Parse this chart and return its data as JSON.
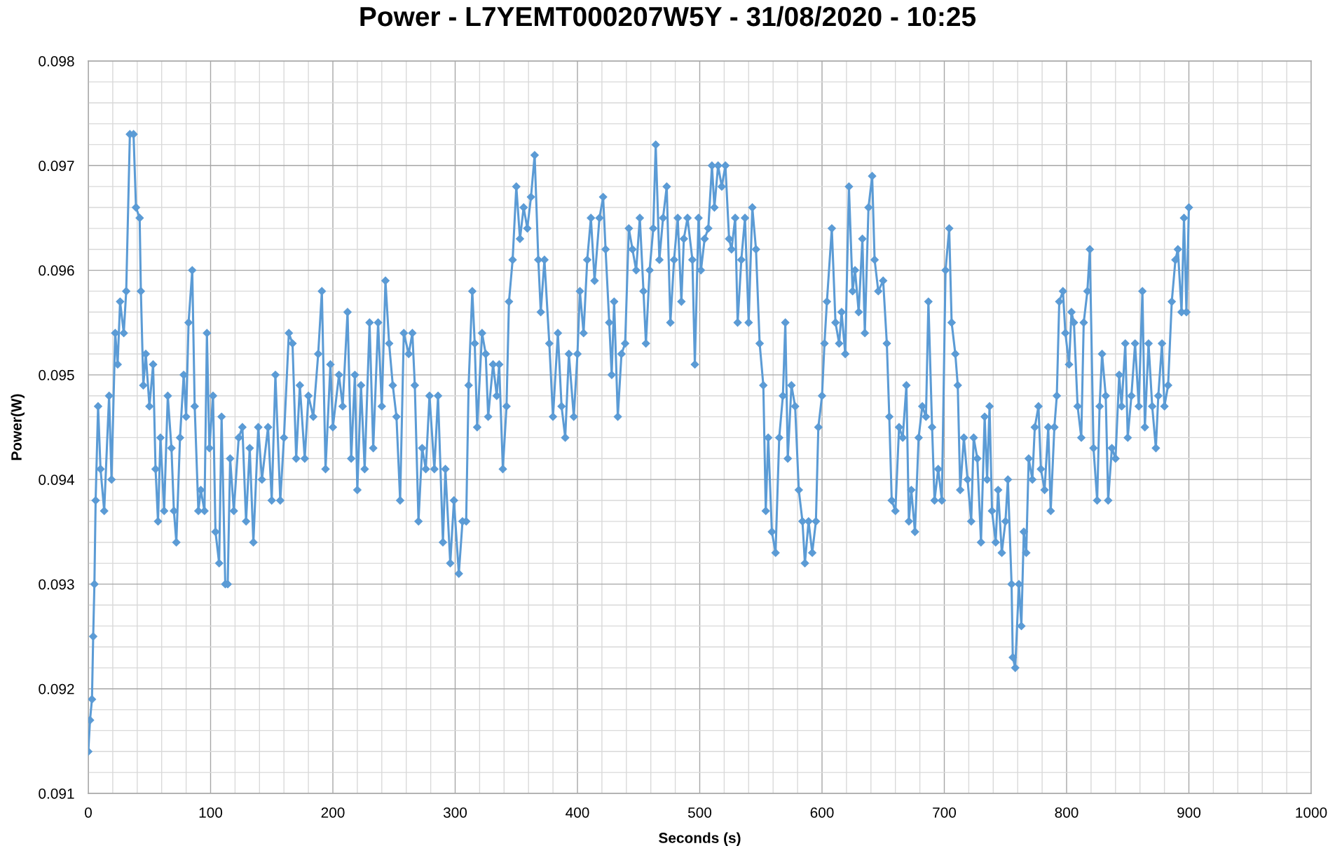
{
  "chart_data": {
    "type": "line",
    "title": "Power - L7YEMT000207W5Y - 31/08/2020 - 10:25",
    "xlabel": "Seconds (s)",
    "ylabel": "Power(W)",
    "xlim": [
      0,
      1000
    ],
    "ylim": [
      0.091,
      0.098
    ],
    "xticks": [
      0,
      {
        "value": 20,
        "label": null
      },
      {
        "value": 40,
        "label": null
      },
      {
        "value": 60,
        "label": null
      },
      {
        "value": 80,
        "label": null
      },
      100,
      {
        "value": 120,
        "label": null
      },
      {
        "value": 140,
        "label": null
      },
      {
        "value": 160,
        "label": null
      },
      {
        "value": 180,
        "label": null
      },
      200,
      {
        "value": 220,
        "label": null
      },
      {
        "value": 240,
        "label": null
      },
      {
        "value": 260,
        "label": null
      },
      {
        "value": 280,
        "label": null
      },
      300,
      {
        "value": 320,
        "label": null
      },
      {
        "value": 340,
        "label": null
      },
      {
        "value": 360,
        "label": null
      },
      {
        "value": 380,
        "label": null
      },
      400,
      {
        "value": 420,
        "label": null
      },
      {
        "value": 440,
        "label": null
      },
      {
        "value": 460,
        "label": null
      },
      {
        "value": 480,
        "label": null
      },
      500,
      {
        "value": 520,
        "label": null
      },
      {
        "value": 540,
        "label": null
      },
      {
        "value": 560,
        "label": null
      },
      {
        "value": 580,
        "label": null
      },
      600,
      {
        "value": 620,
        "label": null
      },
      {
        "value": 640,
        "label": null
      },
      {
        "value": 660,
        "label": null
      },
      {
        "value": 680,
        "label": null
      },
      700,
      {
        "value": 720,
        "label": null
      },
      {
        "value": 740,
        "label": null
      },
      {
        "value": 760,
        "label": null
      },
      {
        "value": 780,
        "label": null
      },
      800,
      {
        "value": 820,
        "label": null
      },
      {
        "value": 840,
        "label": null
      },
      {
        "value": 860,
        "label": null
      },
      {
        "value": 880,
        "label": null
      },
      900,
      {
        "value": 920,
        "label": null
      },
      {
        "value": 940,
        "label": null
      },
      {
        "value": 960,
        "label": null
      },
      {
        "value": 980,
        "label": null
      },
      1000
    ],
    "yticks": [
      0.091,
      {
        "value": 0.0912,
        "label": null
      },
      {
        "value": 0.0914,
        "label": null
      },
      {
        "value": 0.0916,
        "label": null
      },
      {
        "value": 0.0918,
        "label": null
      },
      0.092,
      {
        "value": 0.0922,
        "label": null
      },
      {
        "value": 0.0924,
        "label": null
      },
      {
        "value": 0.0926,
        "label": null
      },
      {
        "value": 0.0928,
        "label": null
      },
      0.093,
      {
        "value": 0.0932,
        "label": null
      },
      {
        "value": 0.0934,
        "label": null
      },
      {
        "value": 0.0936,
        "label": null
      },
      {
        "value": 0.0938,
        "label": null
      },
      0.094,
      {
        "value": 0.0942,
        "label": null
      },
      {
        "value": 0.0944,
        "label": null
      },
      {
        "value": 0.0946,
        "label": null
      },
      {
        "value": 0.0948,
        "label": null
      },
      0.095,
      {
        "value": 0.0952,
        "label": null
      },
      {
        "value": 0.0954,
        "label": null
      },
      {
        "value": 0.0956,
        "label": null
      },
      {
        "value": 0.0958,
        "label": null
      },
      0.096,
      {
        "value": 0.0962,
        "label": null
      },
      {
        "value": 0.0964,
        "label": null
      },
      {
        "value": 0.0966,
        "label": null
      },
      {
        "value": 0.0968,
        "label": null
      },
      0.097,
      {
        "value": 0.0972,
        "label": null
      },
      {
        "value": 0.0974,
        "label": null
      },
      {
        "value": 0.0976,
        "label": null
      },
      {
        "value": 0.0978,
        "label": null
      },
      0.098
    ],
    "grid": true,
    "marker": "diamond",
    "line_style": "solid",
    "x": [
      0,
      1.4,
      3,
      4,
      5,
      6,
      8,
      10,
      13,
      17,
      19,
      22,
      24,
      26,
      29,
      31,
      34,
      37,
      39,
      42,
      43,
      45,
      47,
      50,
      53,
      55,
      57,
      59,
      62,
      65,
      68,
      70,
      72,
      75,
      78,
      80,
      82,
      85,
      87,
      90,
      92,
      95,
      97,
      99,
      102,
      104,
      107,
      109,
      112,
      114,
      116,
      119,
      123,
      126,
      129,
      132,
      135,
      139,
      142,
      147,
      150,
      153,
      157,
      160,
      164,
      167,
      170,
      173,
      177,
      180,
      184,
      188,
      191,
      194,
      198,
      200,
      205,
      208,
      212,
      215,
      218,
      220,
      223,
      226,
      230,
      233,
      237,
      240,
      243,
      246,
      249,
      252,
      255,
      258,
      262,
      265,
      267,
      270,
      273,
      276,
      279,
      283,
      286,
      290,
      292,
      296,
      299,
      303,
      306,
      309,
      311,
      314,
      316,
      318,
      322,
      325,
      327,
      331,
      334,
      336,
      339,
      342,
      344,
      347,
      350,
      353,
      356,
      359,
      362,
      365,
      368,
      370,
      373,
      377,
      380,
      384,
      387,
      390,
      393,
      397,
      400,
      402,
      405,
      408,
      411,
      414,
      418,
      421,
      423,
      426,
      428,
      430,
      433,
      436,
      439,
      442,
      445,
      448,
      451,
      454,
      456,
      459,
      462,
      464,
      467,
      470,
      473,
      476,
      479,
      482,
      485,
      487,
      490,
      494,
      496,
      499,
      501,
      504,
      507,
      510,
      512,
      515,
      518,
      521,
      524,
      526,
      529,
      531,
      534,
      537,
      540,
      543,
      546,
      549,
      552,
      554,
      556,
      559,
      562,
      565,
      568,
      570,
      572,
      575,
      578,
      581,
      584,
      586,
      589,
      592,
      595,
      597,
      600,
      602,
      604,
      608,
      611,
      614,
      616,
      619,
      622,
      625,
      627,
      630,
      633,
      635,
      638,
      641,
      643,
      646,
      650,
      653,
      655,
      657,
      660,
      663,
      666,
      669,
      671,
      673,
      676,
      679,
      682,
      685,
      687,
      690,
      692,
      695,
      698,
      701,
      704,
      706,
      709,
      711,
      713,
      716,
      719,
      722,
      724,
      727,
      730,
      733,
      735,
      737,
      739,
      742,
      744,
      747,
      750,
      752,
      755,
      756,
      758,
      761,
      763,
      765,
      767,
      769,
      772,
      774,
      777,
      779,
      782,
      785,
      787,
      790,
      792,
      794,
      797,
      799,
      802,
      804,
      806,
      809,
      812,
      814,
      817,
      819,
      822,
      825,
      827,
      829,
      832,
      834,
      837,
      840,
      843,
      845,
      848,
      850,
      853,
      856,
      859,
      862,
      864,
      867,
      870,
      873,
      875,
      878,
      880,
      883,
      886,
      889,
      891,
      894,
      896,
      898,
      900
    ],
    "series": [
      {
        "color": "#5b9bd5",
        "values": [
          0.0914,
          0.0917,
          0.0919,
          0.0925,
          0.093,
          0.0938,
          0.0947,
          0.0941,
          0.0937,
          0.0948,
          0.094,
          0.0954,
          0.0951,
          0.0957,
          0.0954,
          0.0958,
          0.0973,
          0.0973,
          0.0966,
          0.0965,
          0.0958,
          0.0949,
          0.0952,
          0.0947,
          0.0951,
          0.0941,
          0.0936,
          0.0944,
          0.0937,
          0.0948,
          0.0943,
          0.0937,
          0.0934,
          0.0944,
          0.095,
          0.0946,
          0.0955,
          0.096,
          0.0947,
          0.0937,
          0.0939,
          0.0937,
          0.0954,
          0.0943,
          0.0948,
          0.0935,
          0.0932,
          0.0946,
          0.093,
          0.093,
          0.0942,
          0.0937,
          0.0944,
          0.0945,
          0.0936,
          0.0943,
          0.0934,
          0.0945,
          0.094,
          0.0945,
          0.0938,
          0.095,
          0.0938,
          0.0944,
          0.0954,
          0.0953,
          0.0942,
          0.0949,
          0.0942,
          0.0948,
          0.0946,
          0.0952,
          0.0958,
          0.0941,
          0.0951,
          0.0945,
          0.095,
          0.0947,
          0.0956,
          0.0942,
          0.095,
          0.0939,
          0.0949,
          0.0941,
          0.0955,
          0.0943,
          0.0955,
          0.0947,
          0.0959,
          0.0953,
          0.0949,
          0.0946,
          0.0938,
          0.0954,
          0.0952,
          0.0954,
          0.0949,
          0.0936,
          0.0943,
          0.0941,
          0.0948,
          0.0941,
          0.0948,
          0.0934,
          0.0941,
          0.0932,
          0.0938,
          0.0931,
          0.0936,
          0.0936,
          0.0949,
          0.0958,
          0.0953,
          0.0945,
          0.0954,
          0.0952,
          0.0946,
          0.0951,
          0.0948,
          0.0951,
          0.0941,
          0.0947,
          0.0957,
          0.0961,
          0.0968,
          0.0963,
          0.0966,
          0.0964,
          0.0967,
          0.0971,
          0.0961,
          0.0956,
          0.0961,
          0.0953,
          0.0946,
          0.0954,
          0.0947,
          0.0944,
          0.0952,
          0.0946,
          0.0952,
          0.0958,
          0.0954,
          0.0961,
          0.0965,
          0.0959,
          0.0965,
          0.0967,
          0.0962,
          0.0955,
          0.095,
          0.0957,
          0.0946,
          0.0952,
          0.0953,
          0.0964,
          0.0962,
          0.096,
          0.0965,
          0.0958,
          0.0953,
          0.096,
          0.0964,
          0.0972,
          0.0961,
          0.0965,
          0.0968,
          0.0955,
          0.0961,
          0.0965,
          0.0957,
          0.0963,
          0.0965,
          0.0961,
          0.0951,
          0.0965,
          0.096,
          0.0963,
          0.0964,
          0.097,
          0.0966,
          0.097,
          0.0968,
          0.097,
          0.0963,
          0.0962,
          0.0965,
          0.0955,
          0.0961,
          0.0965,
          0.0955,
          0.0966,
          0.0962,
          0.0953,
          0.0949,
          0.0937,
          0.0944,
          0.0935,
          0.0933,
          0.0944,
          0.0948,
          0.0955,
          0.0942,
          0.0949,
          0.0947,
          0.0939,
          0.0936,
          0.0932,
          0.0936,
          0.0933,
          0.0936,
          0.0945,
          0.0948,
          0.0953,
          0.0957,
          0.0964,
          0.0955,
          0.0953,
          0.0956,
          0.0952,
          0.0968,
          0.0958,
          0.096,
          0.0956,
          0.0963,
          0.0954,
          0.0966,
          0.0969,
          0.0961,
          0.0958,
          0.0959,
          0.0953,
          0.0946,
          0.0938,
          0.0937,
          0.0945,
          0.0944,
          0.0949,
          0.0936,
          0.0939,
          0.0935,
          0.0944,
          0.0947,
          0.0946,
          0.0957,
          0.0945,
          0.0938,
          0.0941,
          0.0938,
          0.096,
          0.0964,
          0.0955,
          0.0952,
          0.0949,
          0.0939,
          0.0944,
          0.094,
          0.0936,
          0.0944,
          0.0942,
          0.0934,
          0.0946,
          0.094,
          0.0947,
          0.0937,
          0.0934,
          0.0939,
          0.0933,
          0.0936,
          0.094,
          0.093,
          0.0923,
          0.0922,
          0.093,
          0.0926,
          0.0935,
          0.0933,
          0.0942,
          0.094,
          0.0945,
          0.0947,
          0.0941,
          0.0939,
          0.0945,
          0.0937,
          0.0945,
          0.0948,
          0.0957,
          0.0958,
          0.0954,
          0.0951,
          0.0956,
          0.0955,
          0.0947,
          0.0944,
          0.0955,
          0.0958,
          0.0962,
          0.0943,
          0.0938,
          0.0947,
          0.0952,
          0.0948,
          0.0938,
          0.0943,
          0.0942,
          0.095,
          0.0947,
          0.0953,
          0.0944,
          0.0948,
          0.0953,
          0.0947,
          0.0958,
          0.0945,
          0.0953,
          0.0947,
          0.0943,
          0.0948,
          0.0953,
          0.0947,
          0.0949,
          0.0957,
          0.0961,
          0.0962,
          0.0956,
          0.0965,
          0.0956,
          0.0966
        ]
      }
    ]
  }
}
